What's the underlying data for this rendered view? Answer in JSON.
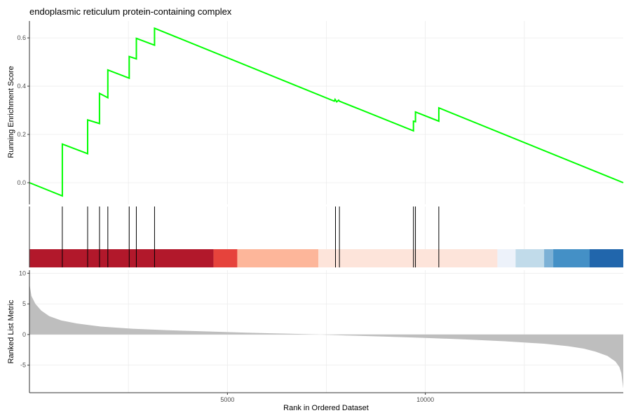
{
  "chart_data": {
    "type": "line",
    "title": "endoplasmic reticulum protein-containing complex",
    "xlabel": "Rank in Ordered Dataset",
    "x_ticks": [
      5000,
      10000
    ],
    "xlim": [
      0,
      15000
    ],
    "panels": {
      "enrichment": {
        "ylabel": "Running Enrichment Score",
        "ylim": [
          -0.09,
          0.67
        ],
        "y_ticks": [
          0.0,
          0.2,
          0.4,
          0.6
        ],
        "color": "#00ff00",
        "x": [
          0,
          830,
          830,
          1470,
          1470,
          1770,
          1770,
          1980,
          1980,
          2520,
          2520,
          2700,
          2700,
          3160,
          3160,
          7700,
          7720,
          7760,
          7810,
          7830,
          9700,
          9700,
          9750,
          9750,
          10340,
          10340,
          15000
        ],
        "y": [
          0.0,
          -0.055,
          0.16,
          0.12,
          0.26,
          0.245,
          0.37,
          0.352,
          0.467,
          0.433,
          0.523,
          0.513,
          0.598,
          0.57,
          0.64,
          0.338,
          0.345,
          0.335,
          0.342,
          0.338,
          0.215,
          0.255,
          0.253,
          0.293,
          0.255,
          0.31,
          0.0
        ]
      },
      "hits": {
        "positions": [
          830,
          1470,
          1770,
          1980,
          2520,
          2700,
          3160,
          7730,
          7830,
          9700,
          9750,
          10340
        ],
        "color": "#000000"
      },
      "color_bar": {
        "segments": [
          {
            "start": 0,
            "end": 4650,
            "color": "#b2182b"
          },
          {
            "start": 4650,
            "end": 5250,
            "color": "#e6433c"
          },
          {
            "start": 5250,
            "end": 7300,
            "color": "#fdb69a"
          },
          {
            "start": 7300,
            "end": 11820,
            "color": "#fde4da"
          },
          {
            "start": 11820,
            "end": 12280,
            "color": "#edf2fa"
          },
          {
            "start": 12280,
            "end": 13000,
            "color": "#c1dbea"
          },
          {
            "start": 13000,
            "end": 13230,
            "color": "#7cb1d6"
          },
          {
            "start": 13230,
            "end": 14150,
            "color": "#4490c6"
          },
          {
            "start": 14150,
            "end": 15000,
            "color": "#2166ac"
          }
        ]
      },
      "ranked_metric": {
        "ylabel": "Ranked List Metric",
        "ylim": [
          -9.5,
          10.5
        ],
        "y_ticks": [
          -5,
          0,
          5,
          10
        ],
        "fill": "#bebebe",
        "x": [
          0,
          50,
          150,
          300,
          500,
          800,
          1200,
          1800,
          2600,
          3500,
          4500,
          5500,
          6500,
          7300,
          7500,
          8000,
          9000,
          10000,
          11000,
          12000,
          13000,
          13600,
          14000,
          14300,
          14600,
          14800,
          14900,
          14950,
          15000
        ],
        "y": [
          8.3,
          6.3,
          5.0,
          3.9,
          3.0,
          2.3,
          1.8,
          1.3,
          0.95,
          0.7,
          0.5,
          0.3,
          0.15,
          0.02,
          -0.05,
          -0.15,
          -0.35,
          -0.55,
          -0.8,
          -1.1,
          -1.5,
          -1.9,
          -2.3,
          -2.8,
          -3.5,
          -4.4,
          -5.3,
          -6.3,
          -8.8
        ]
      }
    }
  }
}
